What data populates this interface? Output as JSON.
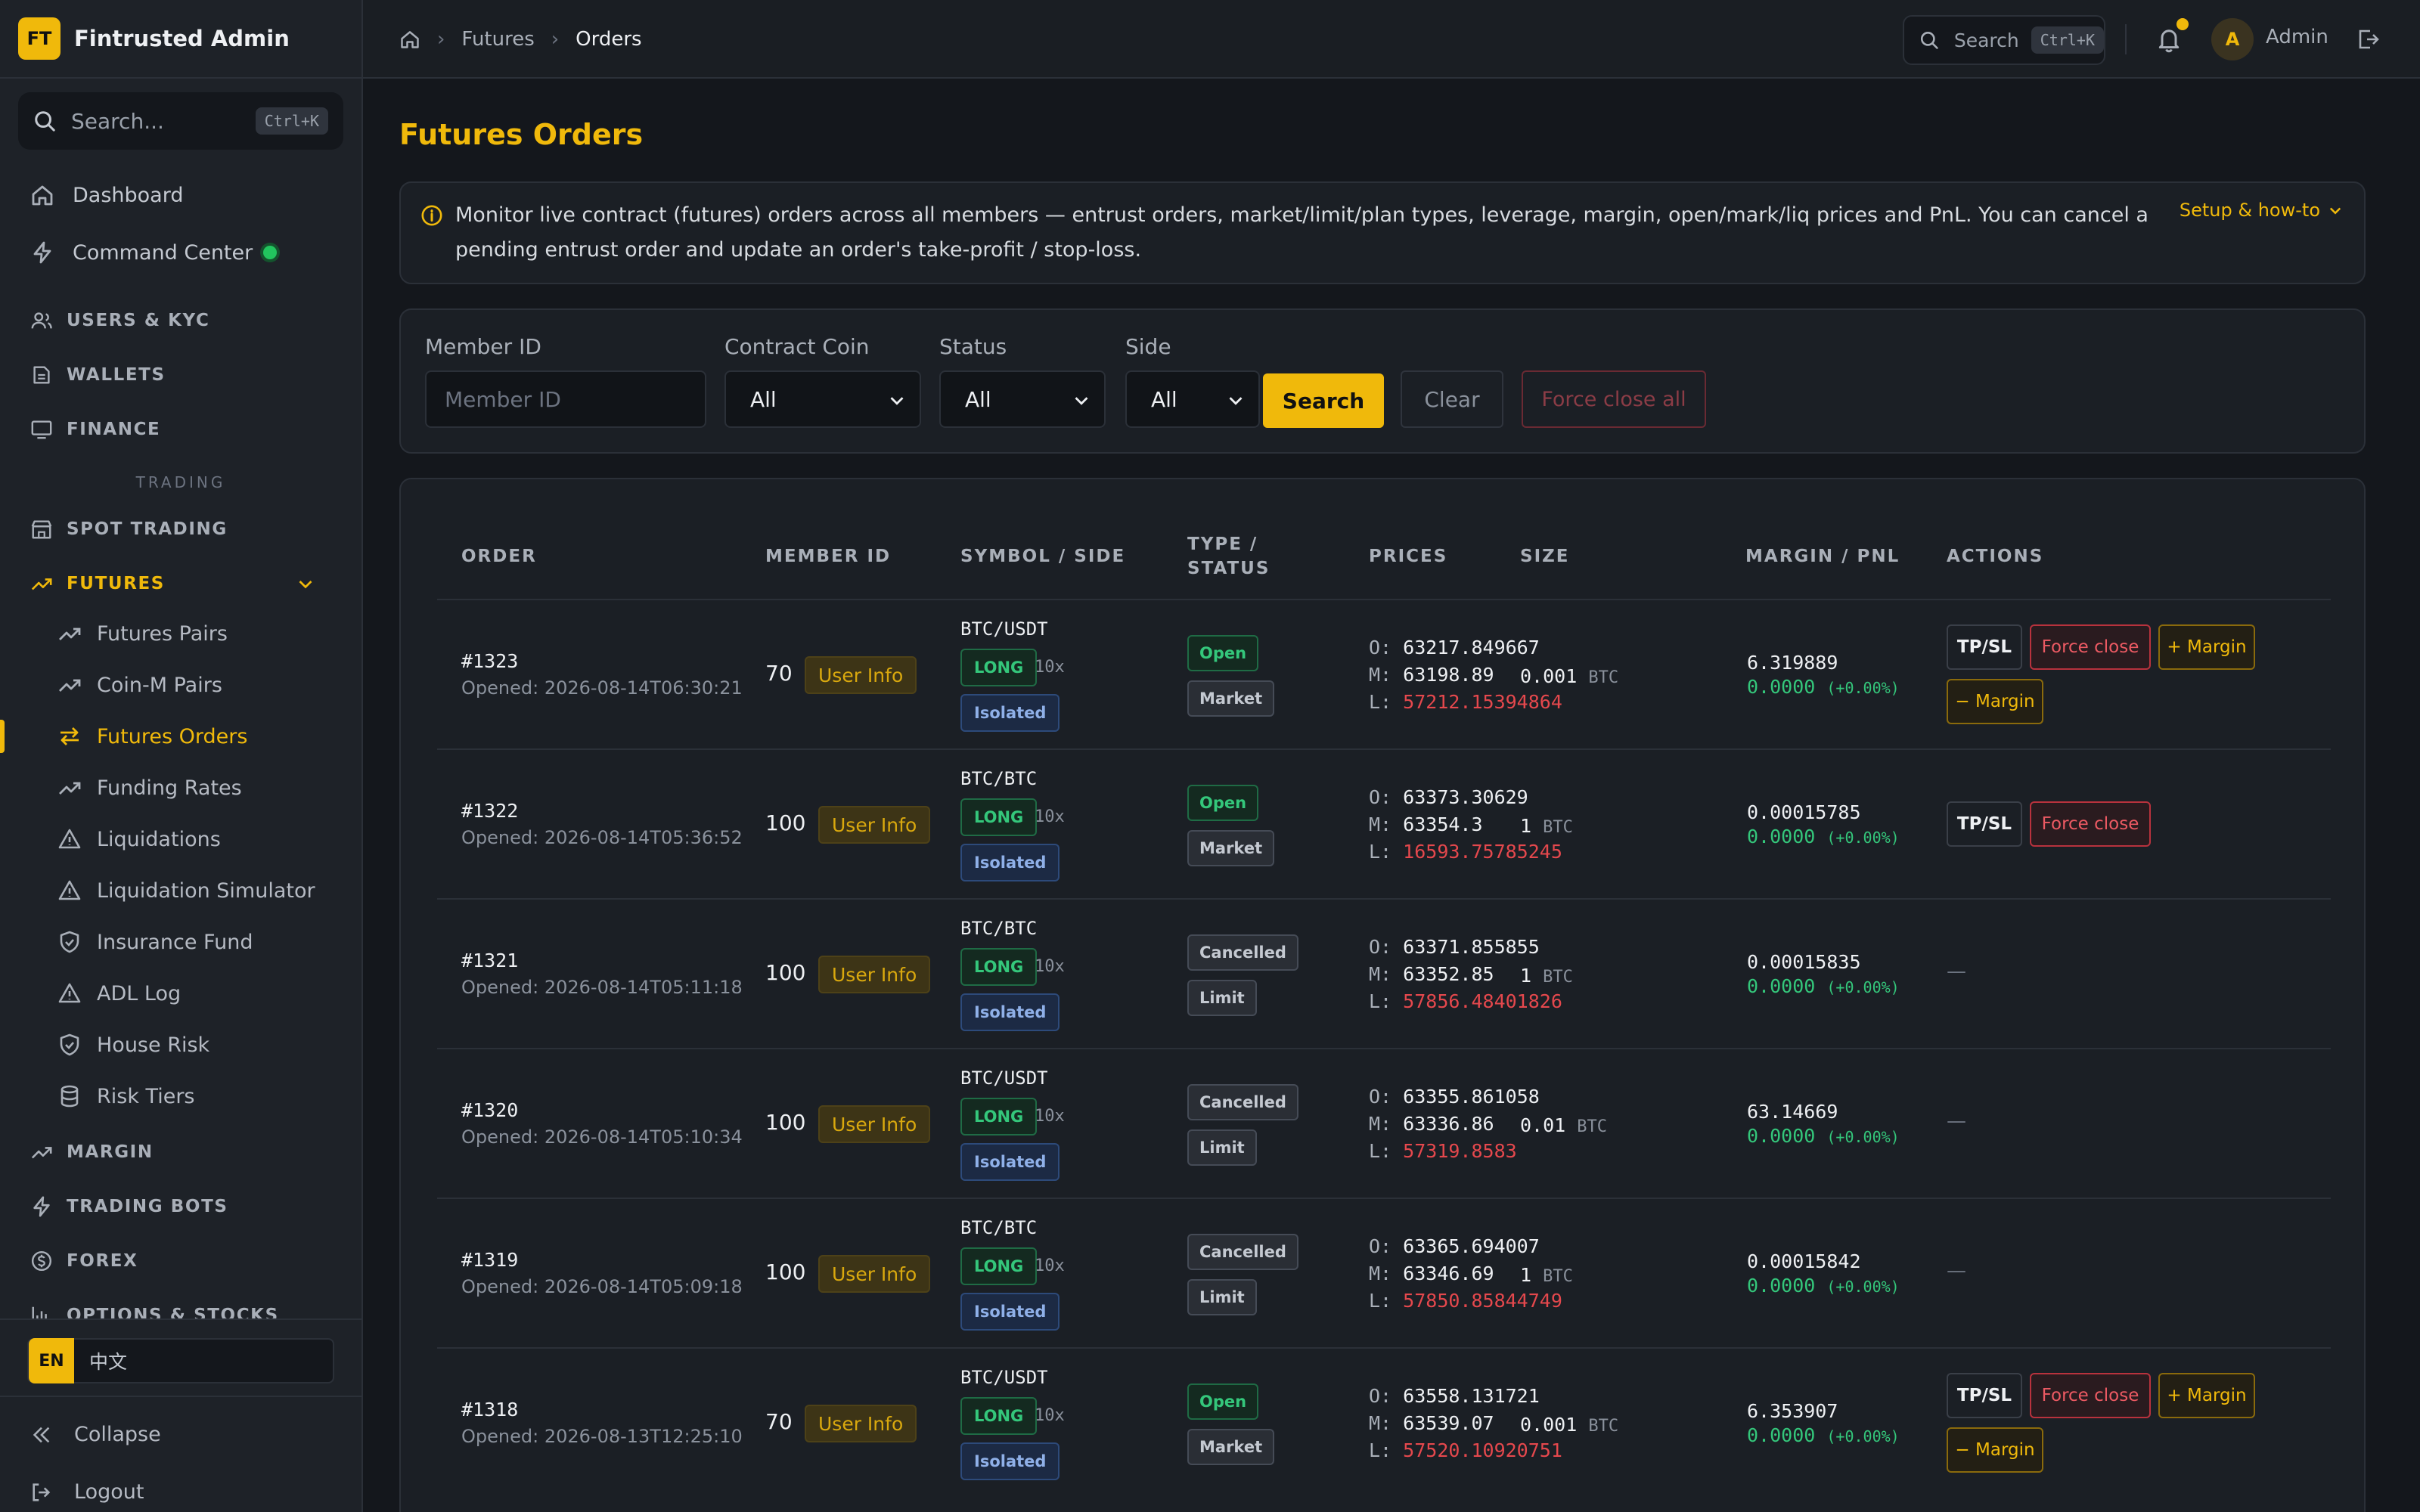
{
  "brand": {
    "logo": "FT",
    "name": "Fintrusted Admin"
  },
  "sidebar": {
    "search_placeholder": "Search...",
    "search_shortcut": "Ctrl+K",
    "dashboard": "Dashboard",
    "command_center": "Command Center",
    "users": "USERS & KYC",
    "wallets": "WALLETS",
    "finance": "FINANCE",
    "section_trading": "TRADING",
    "spot": "SPOT TRADING",
    "futures": "FUTURES",
    "futures_items": [
      "Futures Pairs",
      "Coin-M Pairs",
      "Futures Orders",
      "Funding Rates",
      "Liquidations",
      "Liquidation Simulator",
      "Insurance Fund",
      "ADL Log",
      "House Risk",
      "Risk Tiers"
    ],
    "margin": "MARGIN",
    "bots": "TRADING BOTS",
    "forex": "FOREX",
    "options": "OPTIONS & STOCKS",
    "lang_en": "EN",
    "lang_zh": "中文",
    "collapse": "Collapse",
    "logout": "Logout"
  },
  "topbar": {
    "crumbs": [
      "Futures",
      "Orders"
    ],
    "search": "Search",
    "search_shortcut": "Ctrl+K",
    "avatar": "A",
    "user": "Admin"
  },
  "page": {
    "title": "Futures Orders",
    "info": "Monitor live contract (futures) orders across all members — entrust orders, market/limit/plan types, leverage, margin, open/mark/liq prices and PnL. You can cancel a pending entrust order and update an order's take-profit / stop-loss.",
    "info_link": "Setup & how-to"
  },
  "filters": {
    "member_label": "Member ID",
    "member_placeholder": "Member ID",
    "coin_label": "Contract Coin",
    "coin_value": "All",
    "status_label": "Status",
    "status_value": "All",
    "side_label": "Side",
    "side_value": "All",
    "search_btn": "Search",
    "clear_btn": "Clear",
    "force_all_btn": "Force close all"
  },
  "table": {
    "headers": {
      "order": "ORDER",
      "member": "MEMBER ID",
      "symbol": "SYMBOL / SIDE",
      "type1": "TYPE /",
      "type2": "STATUS",
      "prices": "PRICES",
      "size": "SIZE",
      "margin": "MARGIN / PNL",
      "actions": "ACTIONS"
    },
    "opened_label": "Opened:",
    "user_info": "User Info",
    "price_o": "O:",
    "price_m": "M:",
    "price_l": "L:",
    "actions": {
      "tpsl": "TP/SL",
      "force": "Force close",
      "plus": "+ Margin",
      "minus": "− Margin",
      "none": "—"
    },
    "rows": [
      {
        "id": "#1323",
        "opened": "2026-08-14T06:30:21",
        "member": "70",
        "symbol": "BTC/USDT",
        "side": "LONG",
        "lev": "10x",
        "mode": "Isolated",
        "status": "Open",
        "type": "Market",
        "o": "63217.849667",
        "m": "63198.89",
        "l": "57212.15394864",
        "size": "0.001",
        "unit": "BTC",
        "margin": "6.319889",
        "pnl": "0.0000",
        "pct": "(+0.00%)"
      },
      {
        "id": "#1322",
        "opened": "2026-08-14T05:36:52",
        "member": "100",
        "symbol": "BTC/BTC",
        "side": "LONG",
        "lev": "10x",
        "mode": "Isolated",
        "status": "Open",
        "type": "Market",
        "o": "63373.30629",
        "m": "63354.3",
        "l": "16593.75785245",
        "size": "1",
        "unit": "BTC",
        "margin": "0.00015785",
        "pnl": "0.0000",
        "pct": "(+0.00%)"
      },
      {
        "id": "#1321",
        "opened": "2026-08-14T05:11:18",
        "member": "100",
        "symbol": "BTC/BTC",
        "side": "LONG",
        "lev": "10x",
        "mode": "Isolated",
        "status": "Cancelled",
        "type": "Limit",
        "o": "63371.855855",
        "m": "63352.85",
        "l": "57856.48401826",
        "size": "1",
        "unit": "BTC",
        "margin": "0.00015835",
        "pnl": "0.0000",
        "pct": "(+0.00%)"
      },
      {
        "id": "#1320",
        "opened": "2026-08-14T05:10:34",
        "member": "100",
        "symbol": "BTC/USDT",
        "side": "LONG",
        "lev": "10x",
        "mode": "Isolated",
        "status": "Cancelled",
        "type": "Limit",
        "o": "63355.861058",
        "m": "63336.86",
        "l": "57319.8583",
        "size": "0.01",
        "unit": "BTC",
        "margin": "63.14669",
        "pnl": "0.0000",
        "pct": "(+0.00%)"
      },
      {
        "id": "#1319",
        "opened": "2026-08-14T05:09:18",
        "member": "100",
        "symbol": "BTC/BTC",
        "side": "LONG",
        "lev": "10x",
        "mode": "Isolated",
        "status": "Cancelled",
        "type": "Limit",
        "o": "63365.694007",
        "m": "63346.69",
        "l": "57850.85844749",
        "size": "1",
        "unit": "BTC",
        "margin": "0.00015842",
        "pnl": "0.0000",
        "pct": "(+0.00%)"
      },
      {
        "id": "#1318",
        "opened": "2026-08-13T12:25:10",
        "member": "70",
        "symbol": "BTC/USDT",
        "side": "LONG",
        "lev": "10x",
        "mode": "Isolated",
        "status": "Open",
        "type": "Market",
        "o": "63558.131721",
        "m": "63539.07",
        "l": "57520.10920751",
        "size": "0.001",
        "unit": "BTC",
        "margin": "6.353907",
        "pnl": "0.0000",
        "pct": "(+0.00%)"
      }
    ]
  }
}
